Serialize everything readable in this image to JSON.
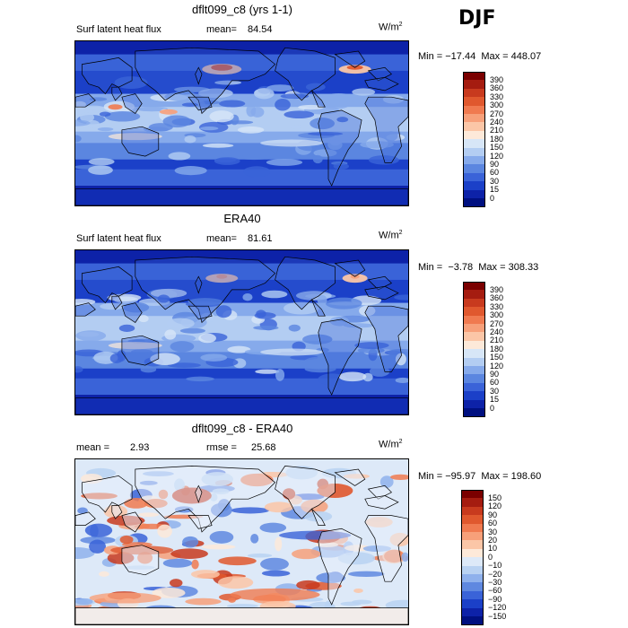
{
  "season": "DJF",
  "panels": [
    {
      "title": "dflt099_c8 (yrs 1-1)",
      "variable": "Surf latent heat flux",
      "mean_label": "mean=",
      "mean_value": "84.54",
      "unit_base": "W/m",
      "unit_exp": "2",
      "minmax": "Min = −17.44  Max = 448.07",
      "colorbar_labels": [
        "390",
        "360",
        "330",
        "300",
        "270",
        "240",
        "210",
        "180",
        "150",
        "120",
        "90",
        "60",
        "30",
        "15",
        "0"
      ],
      "palette": "abs",
      "style": "model"
    },
    {
      "title": "ERA40",
      "variable": "Surf latent heat flux",
      "mean_label": "mean=",
      "mean_value": "81.61",
      "unit_base": "W/m",
      "unit_exp": "2",
      "minmax": "Min =  −3.78  Max = 308.33",
      "colorbar_labels": [
        "390",
        "360",
        "330",
        "300",
        "270",
        "240",
        "210",
        "180",
        "150",
        "120",
        "90",
        "60",
        "30",
        "15",
        "0"
      ],
      "palette": "abs",
      "style": "obs"
    },
    {
      "title": "dflt099_c8 - ERA40",
      "variable": "",
      "mean_label": "mean =",
      "mean_value": "2.93",
      "rmse_label": "rmse =",
      "rmse_value": "25.68",
      "unit_base": "W/m",
      "unit_exp": "2",
      "minmax": "Min = −95.97  Max = 198.60",
      "colorbar_labels": [
        "150",
        "120",
        "90",
        "60",
        "30",
        "20",
        "10",
        "0",
        "−10",
        "−20",
        "−30",
        "−60",
        "−90",
        "−120",
        "−150"
      ],
      "palette": "diff",
      "style": "diff"
    }
  ],
  "colors": {
    "abs": [
      "#7a0000",
      "#a51c10",
      "#c83a1e",
      "#e0582e",
      "#f07a50",
      "#f7a07a",
      "#fbc6a7",
      "#fde9d9",
      "#d7e6f7",
      "#b3cdf2",
      "#86aaeb",
      "#5b86e0",
      "#3a63d8",
      "#1b40c8",
      "#0d22a8",
      "#001080"
    ],
    "diff": [
      "#7a0000",
      "#a51c10",
      "#c83a1e",
      "#e0582e",
      "#f07a50",
      "#f7a07a",
      "#fbc6a7",
      "#fde9d9",
      "#dde9f8",
      "#b9d2f2",
      "#8fb1ec",
      "#5f88e0",
      "#3a63d8",
      "#1b40c8",
      "#0d22a8",
      "#001080"
    ]
  }
}
